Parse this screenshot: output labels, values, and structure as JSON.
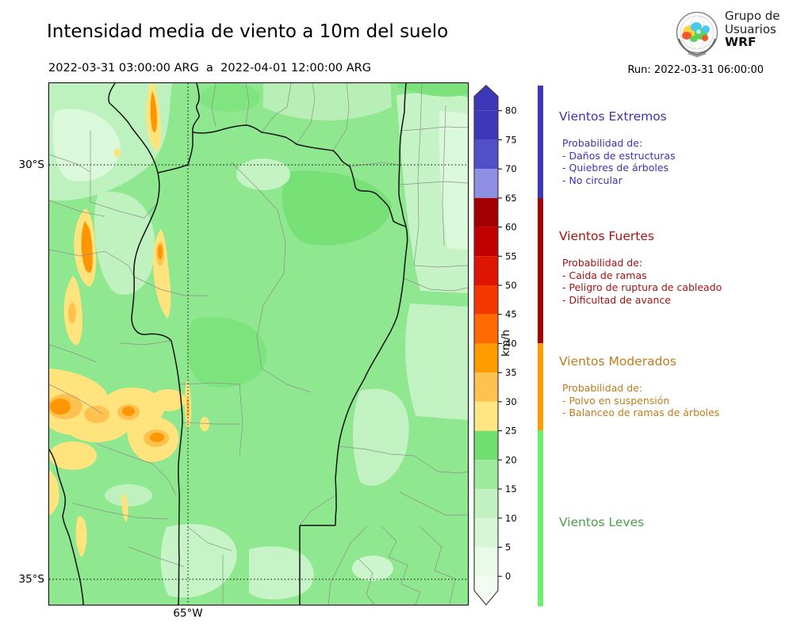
{
  "header": {
    "title": "Intensidad media de viento a 10m del suelo",
    "period": "2022-03-31 03:00:00 ARG  a  2022-04-01 12:00:00 ARG",
    "run_label": "Run: 2022-03-31 06:00:00",
    "logo": {
      "line1": "Grupo de",
      "line2": "Usuarios",
      "line3": "WRF"
    }
  },
  "map_axes": {
    "lat_top": "30°S",
    "lat_bottom": "35°S",
    "lon": "65°W"
  },
  "colorbar": {
    "unit": "km/h",
    "ticks": [
      80,
      75,
      70,
      65,
      60,
      55,
      50,
      45,
      40,
      35,
      30,
      25,
      20,
      15,
      10,
      5,
      0
    ],
    "segments": [
      {
        "arrow": "up",
        "color": "#3c38b8"
      },
      {
        "from": 75,
        "to": 80,
        "color": "#3c38b8"
      },
      {
        "from": 70,
        "to": 75,
        "color": "#514fc9"
      },
      {
        "from": 65,
        "to": 70,
        "color": "#8f8fe3"
      },
      {
        "from": 60,
        "to": 65,
        "color": "#a00000"
      },
      {
        "from": 55,
        "to": 60,
        "color": "#c10000"
      },
      {
        "from": 50,
        "to": 55,
        "color": "#de1500"
      },
      {
        "from": 45,
        "to": 50,
        "color": "#f53800"
      },
      {
        "from": 40,
        "to": 45,
        "color": "#ff6a00"
      },
      {
        "from": 35,
        "to": 40,
        "color": "#ff9c00"
      },
      {
        "from": 30,
        "to": 35,
        "color": "#ffc24f"
      },
      {
        "from": 25,
        "to": 30,
        "color": "#ffe682"
      },
      {
        "from": 20,
        "to": 25,
        "color": "#70df70"
      },
      {
        "from": 15,
        "to": 20,
        "color": "#9dea9d"
      },
      {
        "from": 10,
        "to": 15,
        "color": "#c1f0c1"
      },
      {
        "from": 5,
        "to": 10,
        "color": "#d6f6d6"
      },
      {
        "from": 0,
        "to": 5,
        "color": "#e9fae9"
      },
      {
        "arrow": "down",
        "color": "#f3fcf3"
      }
    ]
  },
  "legend": {
    "bar_segments": [
      {
        "color": "#3c38bb"
      },
      {
        "color": "#a50404"
      },
      {
        "color": "#ff9c00"
      },
      {
        "color": "#6cef6c"
      }
    ],
    "sections": [
      {
        "name": "Vientos Extremos",
        "color": "#3c35ad",
        "prob_label": "Probabilidad de:",
        "items": [
          "- Daños de estructuras",
          "- Quiebres de árboles",
          "- No circular"
        ]
      },
      {
        "name": "Vientos Fuertes",
        "color": "#a51212",
        "prob_label": "Probabilidad de:",
        "items": [
          "- Caida de ramas",
          "- Peligro de ruptura de cableado",
          "- Dificultad de avance"
        ]
      },
      {
        "name": "Vientos Moderados",
        "color": "#bf7c1a",
        "prob_label": "Probabilidad de:",
        "items": [
          "- Polvo en suspensión",
          "- Balanceo de ramas de árboles"
        ]
      },
      {
        "name": "Vientos Leves",
        "color": "#4ba14b",
        "prob_label": "",
        "items": []
      }
    ]
  }
}
